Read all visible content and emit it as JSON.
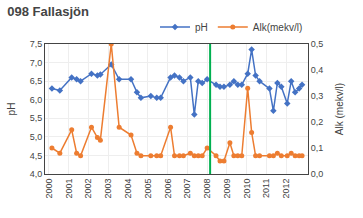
{
  "chart_data": {
    "type": "line",
    "title": "098 Fallasjön",
    "ylabel": "pH",
    "y2label": "Alk (mekv/l)",
    "series": [
      {
        "name": "pH",
        "color": "#4472c4",
        "marker": "diamond",
        "axis": "y",
        "x": [
          2000.15,
          2000.55,
          2001.15,
          2001.4,
          2001.6,
          2002.15,
          2002.45,
          2002.6,
          2003.15,
          2003.55,
          2004.15,
          2004.45,
          2004.65,
          2005.15,
          2005.45,
          2005.65,
          2006.15,
          2006.35,
          2006.6,
          2006.8,
          2007.15,
          2007.35,
          2007.55,
          2007.75,
          2008.0,
          2008.45,
          2008.65,
          2008.85,
          2009.15,
          2009.35,
          2009.55,
          2009.75,
          2010.05,
          2010.25,
          2010.45,
          2010.65,
          2011.15,
          2011.35,
          2011.55,
          2011.75,
          2012.05,
          2012.25,
          2012.45,
          2012.65,
          2012.8
        ],
        "values": [
          6.3,
          6.25,
          6.6,
          6.55,
          6.5,
          6.7,
          6.65,
          6.68,
          6.95,
          6.55,
          6.55,
          6.2,
          6.05,
          6.1,
          6.05,
          6.05,
          6.6,
          6.65,
          6.6,
          6.5,
          6.6,
          5.6,
          6.5,
          6.45,
          6.55,
          6.4,
          6.35,
          6.35,
          6.4,
          6.5,
          6.4,
          6.4,
          6.7,
          7.35,
          6.65,
          6.5,
          6.3,
          5.7,
          6.45,
          6.35,
          5.9,
          6.5,
          6.2,
          6.3,
          6.4
        ]
      },
      {
        "name": "Alk(mekv/l)",
        "color": "#ed7d31",
        "marker": "circle",
        "axis": "y2",
        "x": [
          2000.15,
          2000.55,
          2001.15,
          2001.4,
          2001.6,
          2002.15,
          2002.45,
          2002.6,
          2003.15,
          2003.55,
          2004.15,
          2004.45,
          2004.65,
          2005.15,
          2005.45,
          2005.65,
          2006.15,
          2006.35,
          2006.6,
          2006.8,
          2007.15,
          2007.35,
          2007.55,
          2007.75,
          2008.0,
          2008.45,
          2008.65,
          2008.85,
          2009.15,
          2009.35,
          2009.55,
          2009.75,
          2010.05,
          2010.25,
          2010.45,
          2010.65,
          2011.15,
          2011.35,
          2011.55,
          2011.75,
          2012.05,
          2012.25,
          2012.45,
          2012.65,
          2012.8
        ],
        "values": [
          0.1,
          0.08,
          0.17,
          0.08,
          0.07,
          0.18,
          0.14,
          0.13,
          0.5,
          0.18,
          0.15,
          0.08,
          0.07,
          0.07,
          0.07,
          0.07,
          0.18,
          0.07,
          0.07,
          0.07,
          0.08,
          0.07,
          0.07,
          0.07,
          0.1,
          0.07,
          0.05,
          0.05,
          0.12,
          0.07,
          0.07,
          0.07,
          0.33,
          0.16,
          0.07,
          0.07,
          0.07,
          0.07,
          0.08,
          0.07,
          0.07,
          0.08,
          0.07,
          0.07,
          0.07
        ]
      }
    ],
    "vlines": [
      {
        "x": 2008.15,
        "color": "#00b050"
      }
    ],
    "xlim": [
      1999.8,
      2013.1
    ],
    "xticks": [
      2000,
      2001,
      2002,
      2003,
      2004,
      2005,
      2006,
      2007,
      2008,
      2009,
      2010,
      2011,
      2012
    ],
    "ylim": [
      4.0,
      7.5
    ],
    "yticks": [
      {
        "value": 4.0,
        "label": "4,0"
      },
      {
        "value": 4.5,
        "label": "4,5"
      },
      {
        "value": 5.0,
        "label": "5,0"
      },
      {
        "value": 5.5,
        "label": "5,5"
      },
      {
        "value": 6.0,
        "label": "6,0"
      },
      {
        "value": 6.5,
        "label": "6,5"
      },
      {
        "value": 7.0,
        "label": "7,0"
      },
      {
        "value": 7.5,
        "label": "7,5"
      }
    ],
    "y2lim": [
      0.0,
      0.5
    ],
    "y2ticks": [
      {
        "value": 0.0,
        "label": "0,0"
      },
      {
        "value": 0.1,
        "label": "0,1"
      },
      {
        "value": 0.2,
        "label": "0,2"
      },
      {
        "value": 0.3,
        "label": "0,3"
      },
      {
        "value": 0.4,
        "label": "0,4"
      },
      {
        "value": 0.5,
        "label": "0,5"
      }
    ],
    "grid": true,
    "legend": "upper right"
  }
}
